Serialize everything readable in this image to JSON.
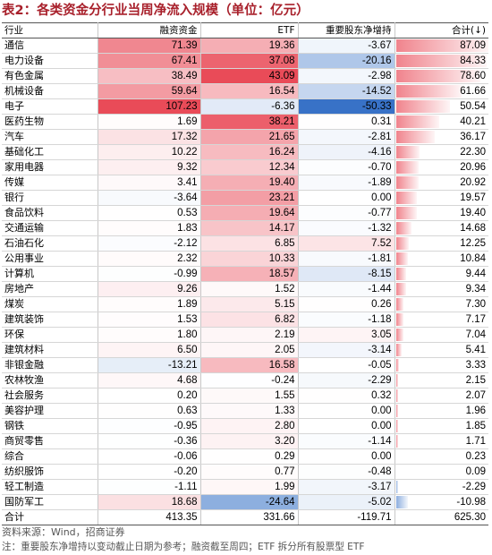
{
  "title": "表2：各类资金分行业当周净流入规模（单位：亿元）",
  "headers": [
    "行业",
    "融资资金",
    "ETF",
    "重要股东净增持",
    "合计(↓)"
  ],
  "rows": [
    [
      "通信",
      "71.39",
      "19.36",
      "-3.67",
      "87.09"
    ],
    [
      "电力设备",
      "67.41",
      "37.08",
      "-20.16",
      "84.33"
    ],
    [
      "有色金属",
      "38.49",
      "43.09",
      "-2.98",
      "78.60"
    ],
    [
      "机械设备",
      "59.64",
      "16.54",
      "-14.52",
      "61.66"
    ],
    [
      "电子",
      "107.23",
      "-6.36",
      "-50.33",
      "50.54"
    ],
    [
      "医药生物",
      "1.69",
      "38.21",
      "0.31",
      "40.21"
    ],
    [
      "汽车",
      "17.32",
      "21.65",
      "-2.81",
      "36.17"
    ],
    [
      "基础化工",
      "10.22",
      "16.24",
      "-4.16",
      "22.30"
    ],
    [
      "家用电器",
      "9.32",
      "12.34",
      "-0.70",
      "20.96"
    ],
    [
      "传媒",
      "3.41",
      "19.40",
      "-1.89",
      "20.92"
    ],
    [
      "银行",
      "-3.64",
      "23.21",
      "0.00",
      "19.57"
    ],
    [
      "食品饮料",
      "0.53",
      "19.64",
      "-0.77",
      "19.40"
    ],
    [
      "交通运输",
      "1.83",
      "14.17",
      "-1.32",
      "14.68"
    ],
    [
      "石油石化",
      "-2.12",
      "6.85",
      "7.52",
      "12.25"
    ],
    [
      "公用事业",
      "2.32",
      "10.33",
      "-1.81",
      "10.84"
    ],
    [
      "计算机",
      "-0.99",
      "18.57",
      "-8.15",
      "9.44"
    ],
    [
      "房地产",
      "9.26",
      "1.52",
      "-1.44",
      "9.34"
    ],
    [
      "煤炭",
      "1.89",
      "5.15",
      "0.26",
      "7.30"
    ],
    [
      "建筑装饰",
      "1.53",
      "6.82",
      "-1.18",
      "7.17"
    ],
    [
      "环保",
      "1.80",
      "2.19",
      "3.05",
      "7.04"
    ],
    [
      "建筑材料",
      "6.50",
      "2.05",
      "-3.14",
      "5.41"
    ],
    [
      "非银金融",
      "-13.21",
      "16.58",
      "-0.05",
      "3.33"
    ],
    [
      "农林牧渔",
      "4.68",
      "-0.24",
      "-2.29",
      "2.15"
    ],
    [
      "社会服务",
      "0.20",
      "1.55",
      "0.32",
      "2.07"
    ],
    [
      "美容护理",
      "0.63",
      "1.33",
      "0.00",
      "1.96"
    ],
    [
      "钢铁",
      "-0.95",
      "2.80",
      "0.00",
      "1.85"
    ],
    [
      "商贸零售",
      "-0.36",
      "3.20",
      "-1.14",
      "1.71"
    ],
    [
      "综合",
      "-0.06",
      "0.29",
      "0.00",
      "0.23"
    ],
    [
      "纺织服饰",
      "-0.20",
      "0.77",
      "-0.48",
      "0.09"
    ],
    [
      "轻工制造",
      "-1.11",
      "1.99",
      "-3.17",
      "-2.29"
    ],
    [
      "国防军工",
      "18.68",
      "-24.64",
      "-5.02",
      "-10.98"
    ]
  ],
  "total": [
    "合计",
    "413.35",
    "331.66",
    "-119.71",
    "625.30"
  ],
  "source": "资料来源：Wind，招商证券",
  "note": "注：重要股东净增持以变动截止日期为参考；融资截至周四；ETF 拆分所有股票型 ETF",
  "colors": {
    "title": "#a8202b",
    "positive": "#e8414f",
    "negative": "#2d6bc4"
  }
}
